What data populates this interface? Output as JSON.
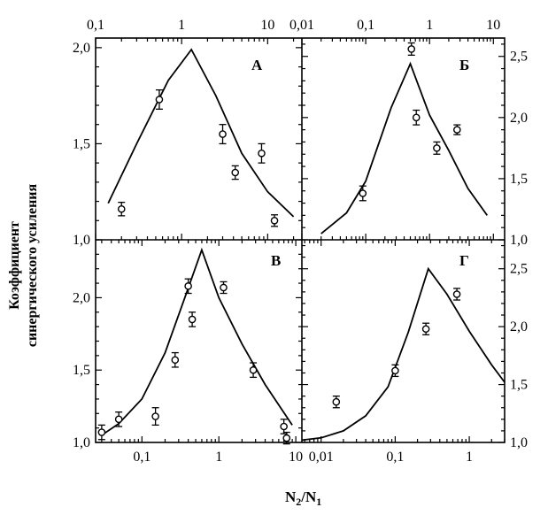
{
  "figure": {
    "ylabel_line1": "Коэффициент",
    "ylabel_line2": "синергического усиления",
    "xlabel_main": "N",
    "xlabel_sub1": "2",
    "xlabel_slash": "/N",
    "xlabel_sub2": "1"
  },
  "chart_data": [
    {
      "type": "scatter",
      "panel": "А",
      "xscale": "log",
      "xlim": [
        0.1,
        25
      ],
      "ylim": [
        1.0,
        2.05
      ],
      "x_ticks": [
        {
          "v": 0.1,
          "label": "0,1"
        },
        {
          "v": 1,
          "label": "1"
        },
        {
          "v": 10,
          "label": "10"
        }
      ],
      "y_ticks": [
        {
          "v": 1.0,
          "label": "1,0"
        },
        {
          "v": 1.5,
          "label": "1,5"
        },
        {
          "v": 2.0,
          "label": "2,0"
        }
      ],
      "x_tick_side": "top",
      "y_tick_side": "left",
      "curve": [
        [
          0.14,
          1.19
        ],
        [
          0.3,
          1.5
        ],
        [
          0.7,
          1.83
        ],
        [
          1.3,
          1.99
        ],
        [
          2.5,
          1.75
        ],
        [
          5,
          1.45
        ],
        [
          10,
          1.25
        ],
        [
          20,
          1.12
        ]
      ],
      "points": [
        [
          0.2,
          1.16,
          0.035
        ],
        [
          0.55,
          1.73,
          0.05
        ],
        [
          3.0,
          1.55,
          0.05
        ],
        [
          4.2,
          1.35,
          0.035
        ],
        [
          8.5,
          1.45,
          0.05
        ],
        [
          12,
          1.1,
          0.03
        ]
      ]
    },
    {
      "type": "scatter",
      "panel": "Б",
      "xscale": "log",
      "xlim": [
        0.01,
        15
      ],
      "ylim": [
        1.0,
        2.65
      ],
      "x_ticks": [
        {
          "v": 0.01,
          "label": "0,01"
        },
        {
          "v": 0.1,
          "label": "0,1"
        },
        {
          "v": 1,
          "label": "1"
        },
        {
          "v": 10,
          "label": "10"
        }
      ],
      "y_ticks": [
        {
          "v": 1.0,
          "label": "1,0"
        },
        {
          "v": 1.5,
          "label": "1,5"
        },
        {
          "v": 2.0,
          "label": "2,0"
        },
        {
          "v": 2.5,
          "label": "2,5"
        }
      ],
      "x_tick_side": "top",
      "y_tick_side": "right",
      "curve": [
        [
          0.02,
          1.05
        ],
        [
          0.05,
          1.22
        ],
        [
          0.1,
          1.48
        ],
        [
          0.25,
          2.08
        ],
        [
          0.5,
          2.44
        ],
        [
          1,
          2.02
        ],
        [
          2,
          1.73
        ],
        [
          4,
          1.42
        ],
        [
          8,
          1.2
        ]
      ],
      "points": [
        [
          0.09,
          1.38,
          0.06
        ],
        [
          0.52,
          2.56,
          0.05
        ],
        [
          0.62,
          2.0,
          0.06
        ],
        [
          1.3,
          1.75,
          0.05
        ],
        [
          2.7,
          1.9,
          0.04
        ]
      ]
    },
    {
      "type": "scatter",
      "panel": "В",
      "xscale": "log",
      "xlim": [
        0.025,
        12
      ],
      "ylim": [
        1.0,
        2.4
      ],
      "x_ticks": [
        {
          "v": 0.1,
          "label": "0,1"
        },
        {
          "v": 1,
          "label": "1"
        },
        {
          "v": 10,
          "label": "10"
        }
      ],
      "y_ticks": [
        {
          "v": 1.0,
          "label": "1,0"
        },
        {
          "v": 1.5,
          "label": "1,5"
        },
        {
          "v": 2.0,
          "label": "2,0"
        }
      ],
      "x_tick_side": "bottom",
      "y_tick_side": "left",
      "curve": [
        [
          0.03,
          1.05
        ],
        [
          0.05,
          1.13
        ],
        [
          0.1,
          1.3
        ],
        [
          0.2,
          1.62
        ],
        [
          0.35,
          1.98
        ],
        [
          0.6,
          2.33
        ],
        [
          1,
          2.0
        ],
        [
          2,
          1.68
        ],
        [
          4,
          1.4
        ],
        [
          9,
          1.12
        ]
      ],
      "points": [
        [
          0.03,
          1.07,
          0.05
        ],
        [
          0.05,
          1.16,
          0.05
        ],
        [
          0.15,
          1.18,
          0.06
        ],
        [
          0.27,
          1.57,
          0.05
        ],
        [
          0.4,
          2.08,
          0.05
        ],
        [
          0.45,
          1.85,
          0.05
        ],
        [
          1.15,
          2.07,
          0.04
        ],
        [
          2.8,
          1.5,
          0.05
        ],
        [
          7,
          1.11,
          0.05
        ],
        [
          7.6,
          1.03,
          0.04
        ]
      ]
    },
    {
      "type": "scatter",
      "panel": "Г",
      "xscale": "log",
      "xlim": [
        0.0055,
        3
      ],
      "ylim": [
        1.0,
        2.75
      ],
      "x_ticks": [
        {
          "v": 0.01,
          "label": "0,01"
        },
        {
          "v": 0.1,
          "label": "0,1"
        },
        {
          "v": 1,
          "label": "1"
        }
      ],
      "y_ticks": [
        {
          "v": 1.0,
          "label": "1,0"
        },
        {
          "v": 1.5,
          "label": "1,5"
        },
        {
          "v": 2.0,
          "label": "2,0"
        },
        {
          "v": 2.5,
          "label": "2,5"
        }
      ],
      "x_tick_side": "bottom",
      "y_tick_side": "right",
      "curve": [
        [
          0.0055,
          1.02
        ],
        [
          0.01,
          1.04
        ],
        [
          0.02,
          1.1
        ],
        [
          0.04,
          1.23
        ],
        [
          0.08,
          1.48
        ],
        [
          0.15,
          1.95
        ],
        [
          0.28,
          2.5
        ],
        [
          0.5,
          2.28
        ],
        [
          1,
          1.96
        ],
        [
          2,
          1.67
        ],
        [
          3,
          1.52
        ]
      ],
      "points": [
        [
          0.016,
          1.35,
          0.05
        ],
        [
          0.1,
          1.62,
          0.05
        ],
        [
          0.26,
          1.98,
          0.05
        ],
        [
          0.68,
          2.28,
          0.05
        ]
      ]
    }
  ]
}
